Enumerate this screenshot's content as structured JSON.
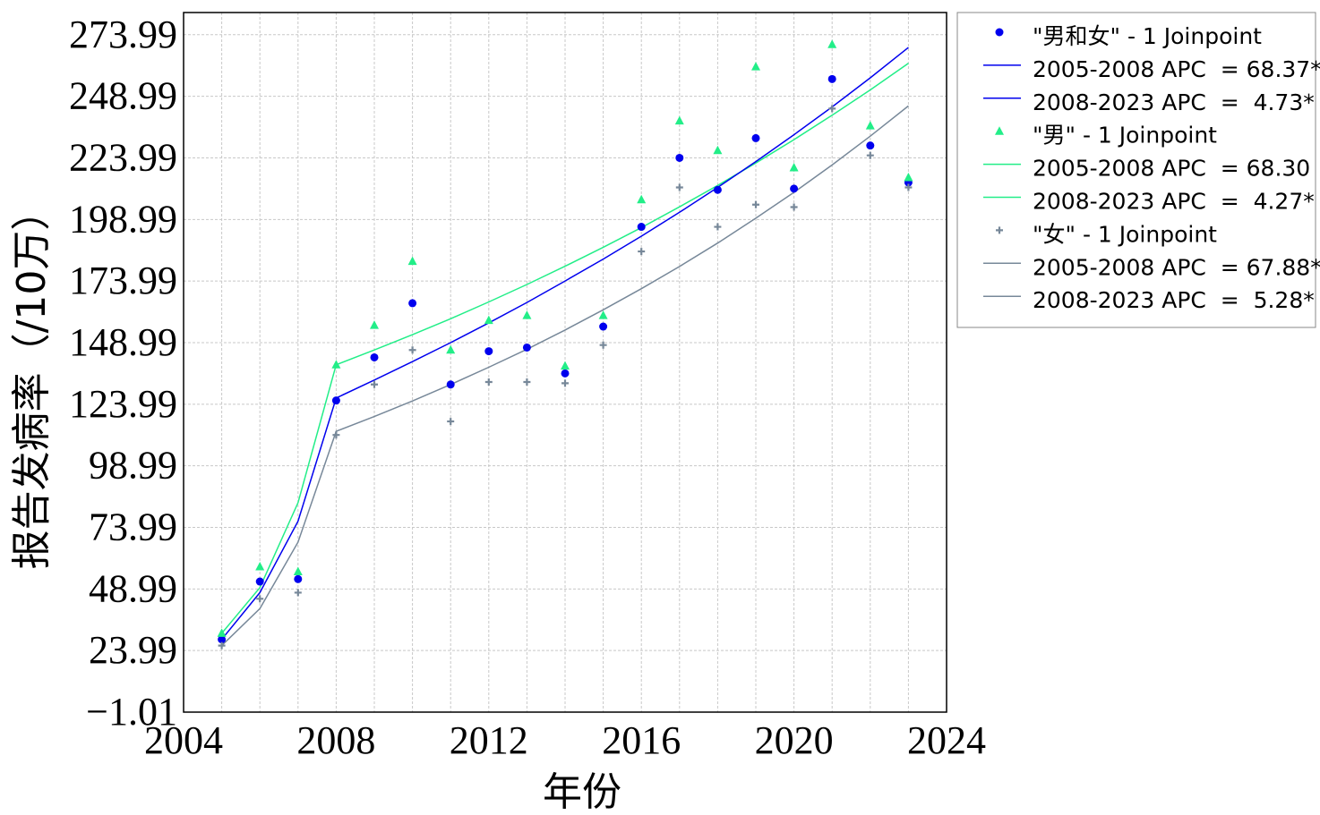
{
  "chart_data": {
    "type": "scatter",
    "xlabel": "年份",
    "ylabel": "报告发病率（/10万）",
    "xlim": [
      2004,
      2024
    ],
    "ylim": [
      -1.01,
      283
    ],
    "x_ticks": [
      2004,
      2008,
      2012,
      2016,
      2020,
      2024
    ],
    "x_tick_labels": [
      "2004",
      "2008",
      "2012",
      "2016",
      "2020",
      "2024"
    ],
    "y_ticks": [
      -1.01,
      23.99,
      48.99,
      73.99,
      98.99,
      123.99,
      148.99,
      173.99,
      198.99,
      223.99,
      248.99,
      273.99
    ],
    "y_tick_labels": [
      "−1.01",
      "23.99",
      "48.99",
      "73.99",
      "98.99",
      "123.99",
      "148.99",
      "173.99",
      "198.99",
      "223.99",
      "248.99",
      "273.99"
    ],
    "grid": true,
    "legend_position": "right",
    "x": [
      2005,
      2006,
      2007,
      2008,
      2009,
      2010,
      2011,
      2012,
      2013,
      2014,
      2015,
      2016,
      2017,
      2018,
      2019,
      2020,
      2021,
      2022,
      2023
    ],
    "series": [
      {
        "name": "\"男和女\" - 1 Joinpoint",
        "color": "#0000ee",
        "marker": "circle",
        "points": [
          28.5,
          52,
          53,
          125.5,
          143,
          165,
          132,
          145.5,
          147,
          136.5,
          155.5,
          196,
          224,
          211,
          232,
          211.5,
          256,
          229,
          214
        ],
        "fit": [
          28.5,
          47.5,
          76.5,
          126.5,
          133.8,
          141.3,
          149.0,
          157.0,
          165.3,
          174.0,
          182.9,
          192.2,
          201.9,
          212.0,
          222.5,
          233.4,
          244.7,
          256.5,
          268.8
        ],
        "segments": [
          "2005-2008 APC  = 68.37*",
          "2008-2023 APC  =  4.73*"
        ]
      },
      {
        "name": "\"男\" - 1 Joinpoint",
        "color": "#22ee88",
        "marker": "triangle",
        "points": [
          31,
          58,
          56,
          140,
          156,
          182,
          146,
          158,
          160,
          139.5,
          160,
          207,
          239,
          227,
          261,
          220,
          270,
          237,
          216
        ],
        "fit": [
          31,
          49.5,
          84,
          140,
          146.0,
          152.2,
          158.7,
          165.5,
          172.6,
          180.0,
          187.7,
          195.7,
          204.1,
          212.8,
          221.9,
          231.4,
          241.3,
          251.6,
          262.4
        ],
        "segments": [
          "2005-2008 APC  = 68.30",
          "2008-2023 APC  =  4.27*"
        ]
      },
      {
        "name": "\"女\" - 1 Joinpoint",
        "color": "#778899",
        "marker": "plus",
        "points": [
          26,
          45,
          47.5,
          111.5,
          132,
          146,
          117,
          133,
          133,
          132.5,
          148,
          186,
          212,
          196,
          205,
          204,
          244,
          225,
          212
        ],
        "fit": [
          26,
          41,
          68,
          113,
          119.0,
          125.3,
          132.0,
          139.0,
          146.3,
          154.1,
          162.3,
          170.9,
          179.9,
          189.4,
          199.5,
          210.0,
          221.1,
          232.8,
          245.1
        ],
        "segments": [
          "2005-2008 APC  = 67.88*",
          "2008-2023 APC  =  5.28*"
        ]
      }
    ]
  }
}
